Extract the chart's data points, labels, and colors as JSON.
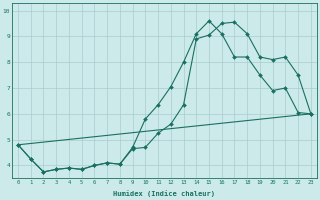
{
  "xlabel": "Humidex (Indice chaleur)",
  "background_color": "#cceaea",
  "grid_color": "#aacccc",
  "line_color": "#1a7060",
  "xlim": [
    -0.5,
    23.5
  ],
  "ylim": [
    3.5,
    10.3
  ],
  "xticks": [
    0,
    1,
    2,
    3,
    4,
    5,
    6,
    7,
    8,
    9,
    10,
    11,
    12,
    13,
    14,
    15,
    16,
    17,
    18,
    19,
    20,
    21,
    22,
    23
  ],
  "yticks": [
    4,
    5,
    6,
    7,
    8,
    9,
    10
  ],
  "line1_x": [
    0,
    1,
    2,
    3,
    4,
    5,
    6,
    7,
    8,
    9,
    10,
    11,
    12,
    13,
    14,
    15,
    16,
    17,
    18,
    19,
    20,
    21,
    22,
    23
  ],
  "line1_y": [
    4.8,
    4.25,
    3.75,
    3.85,
    3.9,
    3.85,
    4.0,
    4.1,
    4.05,
    4.7,
    5.8,
    6.35,
    7.05,
    8.0,
    9.1,
    9.6,
    9.1,
    8.2,
    8.2,
    7.5,
    6.9,
    7.0,
    6.05,
    6.0
  ],
  "line2_x": [
    0,
    1,
    2,
    3,
    4,
    5,
    6,
    7,
    8,
    9,
    10,
    11,
    12,
    13,
    14,
    15,
    16,
    17,
    18,
    19,
    20,
    21,
    22,
    23
  ],
  "line2_y": [
    4.8,
    4.25,
    3.75,
    3.85,
    3.9,
    3.85,
    4.0,
    4.1,
    4.05,
    4.65,
    4.7,
    5.25,
    5.6,
    6.35,
    8.9,
    9.05,
    9.5,
    9.55,
    9.1,
    8.2,
    8.1,
    8.2,
    7.5,
    6.0
  ],
  "line3_x": [
    0,
    23
  ],
  "line3_y": [
    4.8,
    6.0
  ]
}
